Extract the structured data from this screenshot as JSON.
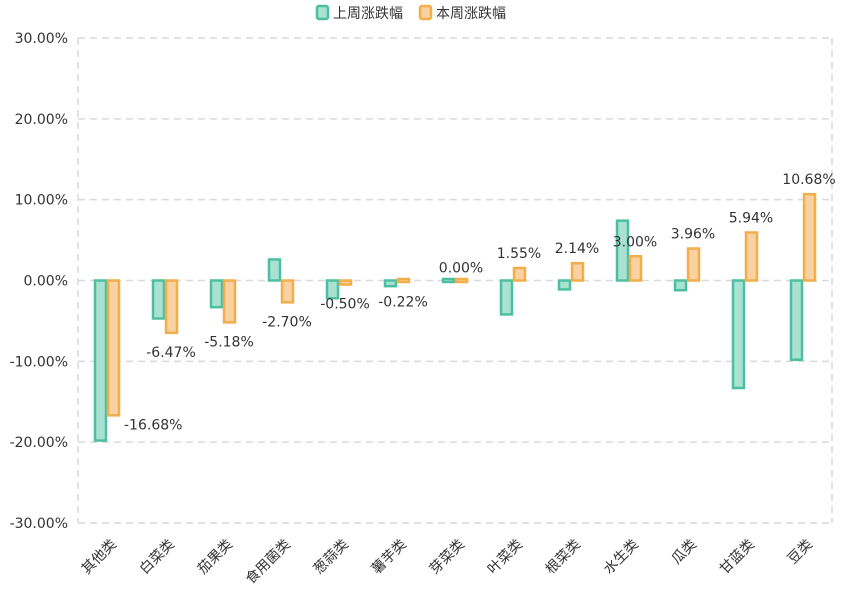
{
  "chart_data": {
    "type": "bar",
    "categories": [
      "其他类",
      "白菜类",
      "茄果类",
      "食用菌类",
      "葱蒜类",
      "薯芋类",
      "芽菜类",
      "叶菜类",
      "根菜类",
      "水生类",
      "瓜类",
      "甘蓝类",
      "豆类"
    ],
    "series": [
      {
        "name": "上周涨跌幅",
        "values": [
          -19.8,
          -4.7,
          -3.3,
          2.6,
          -2.2,
          -0.7,
          -0.3,
          -4.2,
          -1.1,
          7.4,
          -1.2,
          -13.3,
          -9.8
        ],
        "color": "#4cbfa0",
        "fill": "#a9e2d3"
      },
      {
        "name": "本周涨跌幅",
        "values": [
          -16.68,
          -6.47,
          -5.18,
          -2.7,
          -0.5,
          -0.22,
          0.0,
          1.55,
          2.14,
          3.0,
          3.96,
          5.94,
          10.68
        ],
        "color": "#f2ae4a",
        "fill": "#fad1a0"
      }
    ],
    "data_labels": [
      "-16.68%",
      "-6.47%",
      "-5.18%",
      "-2.70%",
      "-0.50%",
      "-0.22%",
      "0.00%",
      "1.55%",
      "2.14%",
      "3.00%",
      "3.96%",
      "5.94%",
      "10.68%"
    ],
    "yticks": [
      "30.00%",
      "20.00%",
      "10.00%",
      "0.00%",
      "-10.00%",
      "-20.00%",
      "-30.00%"
    ],
    "ylim": [
      -30,
      30
    ],
    "grid": true,
    "legend": "top-center"
  }
}
